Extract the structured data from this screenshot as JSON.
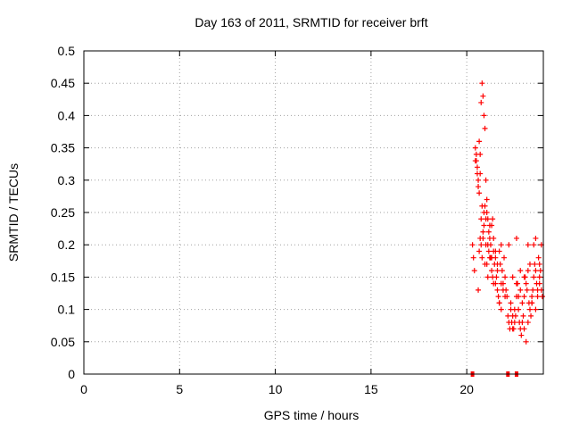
{
  "chart_data": {
    "type": "scatter",
    "title": "Day 163 of 2011, SRMTID for receiver brft",
    "xlabel": "GPS time / hours",
    "ylabel": "SRMTID / TECUs",
    "xlim": [
      0,
      24
    ],
    "ylim": [
      0,
      0.5
    ],
    "x_ticks": [
      "0",
      "5",
      "10",
      "15",
      "20"
    ],
    "y_ticks": [
      "0",
      "0.05",
      "0.1",
      "0.15",
      "0.2",
      "0.25",
      "0.3",
      "0.35",
      "0.4",
      "0.45",
      "0.5"
    ],
    "grid": true,
    "legend": "none",
    "marker": "plus",
    "color": "#ff0000",
    "series": [
      {
        "x": [
          20.3,
          20.35,
          20.4,
          20.45,
          20.5,
          20.55,
          20.6,
          20.65,
          20.7,
          20.75,
          20.8,
          20.85,
          20.9,
          20.95,
          21.0,
          21.05,
          21.1,
          21.15,
          21.2,
          21.25,
          21.3,
          21.35,
          21.4,
          21.45,
          21.5,
          21.55,
          21.6,
          21.65,
          21.7,
          21.75,
          21.8,
          21.85,
          21.9,
          21.95,
          22.0,
          22.05,
          22.1,
          22.15,
          22.2,
          22.25,
          22.3,
          22.35,
          22.4,
          22.45,
          22.5,
          22.55,
          22.6,
          22.65,
          22.7,
          22.75,
          22.8,
          22.85,
          22.9,
          22.95,
          23.0,
          23.05,
          23.1,
          23.15,
          23.2,
          23.25,
          23.3,
          23.35,
          23.4,
          23.45,
          23.5,
          23.55,
          23.6,
          23.65,
          23.7,
          23.75,
          23.8,
          23.85,
          23.9,
          23.95,
          20.45,
          20.5,
          20.55,
          20.6,
          20.65,
          20.7,
          20.75,
          20.8,
          20.85,
          20.9,
          20.95,
          21.0,
          21.05,
          21.1,
          21.15,
          21.2,
          21.25,
          21.3,
          21.35,
          21.4,
          21.5,
          21.6,
          21.7,
          21.8,
          21.9,
          22.0,
          22.3,
          22.4,
          22.5,
          22.6,
          22.7,
          22.8,
          22.9,
          23.0,
          23.1,
          23.2,
          23.3,
          23.4,
          23.5,
          23.6,
          23.7,
          23.8,
          23.9,
          20.6,
          20.65,
          20.7,
          20.75,
          20.8,
          20.85,
          20.9,
          20.95,
          21.0,
          21.05,
          21.1,
          21.2,
          21.3,
          21.4,
          21.5,
          21.6,
          21.7,
          21.8,
          22.2,
          22.4,
          22.6,
          22.8,
          23.0,
          23.2,
          23.4,
          23.6,
          23.8
        ],
        "y": [
          0.2,
          0.18,
          0.16,
          0.33,
          0.34,
          0.32,
          0.3,
          0.28,
          0.31,
          0.2,
          0.18,
          0.22,
          0.25,
          0.26,
          0.2,
          0.17,
          0.15,
          0.19,
          0.21,
          0.18,
          0.16,
          0.15,
          0.14,
          0.17,
          0.19,
          0.15,
          0.13,
          0.12,
          0.11,
          0.17,
          0.2,
          0.16,
          0.14,
          0.18,
          0.15,
          0.13,
          0.12,
          0.09,
          0.08,
          0.07,
          0.1,
          0.08,
          0.07,
          0.07,
          0.08,
          0.09,
          0.12,
          0.14,
          0.1,
          0.08,
          0.07,
          0.06,
          0.08,
          0.09,
          0.12,
          0.15,
          0.14,
          0.13,
          0.16,
          0.11,
          0.1,
          0.09,
          0.12,
          0.13,
          0.15,
          0.17,
          0.16,
          0.14,
          0.12,
          0.18,
          0.17,
          0.16,
          0.13,
          0.12,
          0.35,
          0.33,
          0.31,
          0.29,
          0.36,
          0.34,
          0.42,
          0.45,
          0.43,
          0.4,
          0.38,
          0.3,
          0.27,
          0.24,
          0.22,
          0.23,
          0.2,
          0.18,
          0.24,
          0.19,
          0.14,
          0.16,
          0.11,
          0.1,
          0.13,
          0.12,
          0.11,
          0.09,
          0.1,
          0.14,
          0.12,
          0.13,
          0.11,
          0.07,
          0.05,
          0.08,
          0.17,
          0.11,
          0.2,
          0.1,
          0.13,
          0.15,
          0.2,
          0.13,
          0.19,
          0.21,
          0.24,
          0.26,
          0.21,
          0.23,
          0.17,
          0.24,
          0.25,
          0.2,
          0.18,
          0.23,
          0.21,
          0.18,
          0.17,
          0.19,
          0.14,
          0.2,
          0.15,
          0.21,
          0.16,
          0.15,
          0.2,
          0.11,
          0.21,
          0.14
        ],
        "zero_points_x": [
          20.3,
          22.15,
          22.6
        ]
      }
    ]
  }
}
